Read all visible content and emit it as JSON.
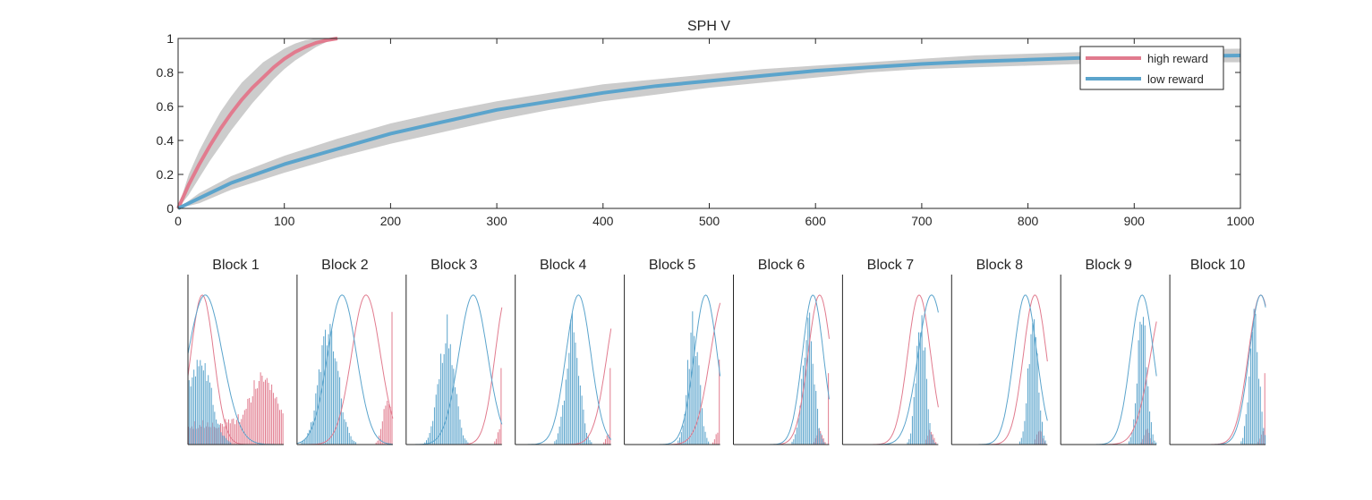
{
  "chart_data": [
    {
      "type": "line",
      "title": "SPH  V",
      "xlabel": "",
      "ylabel": "",
      "xlim": [
        0,
        1000
      ],
      "ylim": [
        0,
        1
      ],
      "xticks": [
        "0",
        "100",
        "200",
        "300",
        "400",
        "500",
        "600",
        "700",
        "800",
        "900",
        "1000"
      ],
      "yticks": [
        "0",
        "0.2",
        "0.4",
        "0.6",
        "0.8",
        "1"
      ],
      "grid": false,
      "legend": {
        "placement": "top-right",
        "entries": [
          "high reward",
          "low reward"
        ]
      },
      "series": [
        {
          "name": "high reward",
          "color": "#e17b8e",
          "band_color": "#cccccc",
          "x": [
            0,
            10,
            20,
            30,
            40,
            50,
            60,
            70,
            80,
            90,
            100,
            110,
            120,
            130,
            140,
            150
          ],
          "y": [
            0.0,
            0.14,
            0.26,
            0.37,
            0.47,
            0.56,
            0.64,
            0.71,
            0.77,
            0.83,
            0.88,
            0.92,
            0.95,
            0.975,
            0.99,
            1.0
          ],
          "band_upper": [
            0.0,
            0.2,
            0.34,
            0.46,
            0.57,
            0.66,
            0.74,
            0.8,
            0.86,
            0.9,
            0.94,
            0.97,
            0.99,
            1.0,
            1.0,
            1.0
          ],
          "band_lower": [
            0.0,
            0.08,
            0.18,
            0.28,
            0.37,
            0.46,
            0.54,
            0.62,
            0.69,
            0.76,
            0.82,
            0.87,
            0.91,
            0.95,
            0.98,
            1.0
          ]
        },
        {
          "name": "low reward",
          "color": "#5ba4cc",
          "band_color": "#cccccc",
          "x": [
            0,
            20,
            50,
            100,
            150,
            200,
            250,
            300,
            350,
            400,
            450,
            500,
            550,
            600,
            650,
            700,
            750,
            800,
            850,
            900,
            950,
            1000
          ],
          "y": [
            0.0,
            0.06,
            0.15,
            0.26,
            0.35,
            0.44,
            0.51,
            0.58,
            0.63,
            0.68,
            0.72,
            0.75,
            0.78,
            0.81,
            0.83,
            0.85,
            0.865,
            0.875,
            0.885,
            0.89,
            0.895,
            0.9
          ],
          "band_upper": [
            0.0,
            0.09,
            0.19,
            0.31,
            0.41,
            0.5,
            0.57,
            0.63,
            0.68,
            0.73,
            0.76,
            0.79,
            0.82,
            0.84,
            0.86,
            0.88,
            0.9,
            0.91,
            0.92,
            0.93,
            0.935,
            0.94
          ],
          "band_lower": [
            0.0,
            0.03,
            0.11,
            0.21,
            0.3,
            0.38,
            0.45,
            0.52,
            0.58,
            0.63,
            0.67,
            0.71,
            0.74,
            0.77,
            0.8,
            0.82,
            0.83,
            0.84,
            0.85,
            0.855,
            0.86,
            0.86
          ]
        }
      ]
    },
    {
      "type": "histogram-panels",
      "colors": {
        "high": "#e17b8e",
        "low": "#5ba4cc"
      },
      "blocks": [
        {
          "title": "Block 1",
          "high": {
            "mu": 0.15,
            "sd": 0.12
          },
          "low": {
            "mu": 0.18,
            "sd": 0.18
          },
          "hist_high": {
            "mu": 0.78,
            "sd": 0.12,
            "amp": 0.32,
            "floor": 0.15,
            "spike": 0.0
          },
          "hist_low": {
            "mu": 0.12,
            "sd": 0.12,
            "amp": 0.58,
            "floor": 0.0,
            "spike": 0.0
          }
        },
        {
          "title": "Block 2",
          "high": {
            "mu": 0.72,
            "sd": 0.15
          },
          "low": {
            "mu": 0.47,
            "sd": 0.15
          },
          "hist_high": {
            "mu": 0.95,
            "sd": 0.05,
            "amp": 0.3,
            "floor": 0.0,
            "spike": 0.78
          },
          "hist_low": {
            "mu": 0.33,
            "sd": 0.1,
            "amp": 0.78,
            "floor": 0.0,
            "spike": 0.0
          }
        },
        {
          "title": "Block 3",
          "high": {
            "mu": 1.05,
            "sd": 0.12
          },
          "low": {
            "mu": 0.7,
            "sd": 0.15
          },
          "hist_high": {
            "mu": 0.98,
            "sd": 0.03,
            "amp": 0.1,
            "floor": 0.0,
            "spike": 0.45
          },
          "hist_low": {
            "mu": 0.42,
            "sd": 0.08,
            "amp": 0.78,
            "floor": 0.0,
            "spike": 0.0
          }
        },
        {
          "title": "Block 4",
          "high": {
            "mu": 1.1,
            "sd": 0.14
          },
          "low": {
            "mu": 0.66,
            "sd": 0.13
          },
          "hist_high": {
            "mu": 0.98,
            "sd": 0.03,
            "amp": 0.08,
            "floor": 0.0,
            "spike": 0.45
          },
          "hist_low": {
            "mu": 0.6,
            "sd": 0.07,
            "amp": 0.78,
            "floor": 0.0,
            "spike": 0.0
          }
        },
        {
          "title": "Block 5",
          "high": {
            "mu": 1.05,
            "sd": 0.15
          },
          "low": {
            "mu": 0.85,
            "sd": 0.12
          },
          "hist_high": {
            "mu": 0.98,
            "sd": 0.03,
            "amp": 0.08,
            "floor": 0.0,
            "spike": 0.5
          },
          "hist_low": {
            "mu": 0.72,
            "sd": 0.06,
            "amp": 0.8,
            "floor": 0.0,
            "spike": 0.0
          }
        },
        {
          "title": "Block 6",
          "high": {
            "mu": 0.9,
            "sd": 0.12
          },
          "low": {
            "mu": 0.83,
            "sd": 0.11
          },
          "hist_high": {
            "mu": 0.9,
            "sd": 0.03,
            "amp": 0.1,
            "floor": 0.0,
            "spike": 0.42
          },
          "hist_low": {
            "mu": 0.78,
            "sd": 0.06,
            "amp": 0.85,
            "floor": 0.0,
            "spike": 0.0
          }
        },
        {
          "title": "Block 7",
          "high": {
            "mu": 0.8,
            "sd": 0.12
          },
          "low": {
            "mu": 0.93,
            "sd": 0.14
          },
          "hist_high": {
            "mu": 0.92,
            "sd": 0.03,
            "amp": 0.1,
            "floor": 0.0,
            "spike": 0.0
          },
          "hist_low": {
            "mu": 0.82,
            "sd": 0.05,
            "amp": 0.88,
            "floor": 0.0,
            "spike": 0.0
          }
        },
        {
          "title": "Block 8",
          "high": {
            "mu": 0.87,
            "sd": 0.12
          },
          "low": {
            "mu": 0.77,
            "sd": 0.12
          },
          "hist_high": {
            "mu": 0.92,
            "sd": 0.03,
            "amp": 0.1,
            "floor": 0.0,
            "spike": 0.0
          },
          "hist_low": {
            "mu": 0.85,
            "sd": 0.05,
            "amp": 0.88,
            "floor": 0.0,
            "spike": 0.0
          }
        },
        {
          "title": "Block 9",
          "high": {
            "mu": 1.1,
            "sd": 0.16
          },
          "low": {
            "mu": 0.85,
            "sd": 0.12
          },
          "hist_high": {
            "mu": 0.9,
            "sd": 0.03,
            "amp": 0.1,
            "floor": 0.0,
            "spike": 0.0
          },
          "hist_low": {
            "mu": 0.85,
            "sd": 0.05,
            "amp": 0.85,
            "floor": 0.0,
            "spike": 0.0
          }
        },
        {
          "title": "Block 10",
          "high": {
            "mu": 0.95,
            "sd": 0.13
          },
          "low": {
            "mu": 0.95,
            "sd": 0.12
          },
          "hist_high": {
            "mu": 0.98,
            "sd": 0.03,
            "amp": 0.1,
            "floor": 0.0,
            "spike": 0.42
          },
          "hist_low": {
            "mu": 0.88,
            "sd": 0.05,
            "amp": 0.85,
            "floor": 0.0,
            "spike": 0.0
          }
        }
      ]
    }
  ]
}
